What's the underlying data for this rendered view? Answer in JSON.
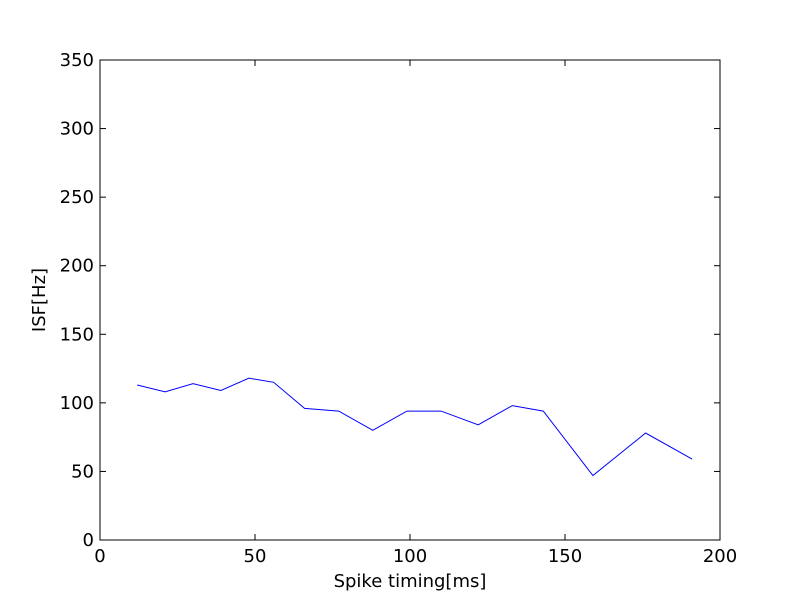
{
  "chart_data": {
    "type": "line",
    "xlabel": "Spike timing[ms]",
    "ylabel": "ISF[Hz]",
    "xlim": [
      0,
      200
    ],
    "ylim": [
      0,
      350
    ],
    "xticks": [
      0,
      50,
      100,
      150,
      200
    ],
    "yticks": [
      0,
      50,
      100,
      150,
      200,
      250,
      300,
      350
    ],
    "xtick_labels": [
      "0",
      "50",
      "100",
      "150",
      "200"
    ],
    "ytick_labels": [
      "0",
      "50",
      "100",
      "150",
      "200",
      "250",
      "300",
      "350"
    ],
    "grid": false,
    "series": [
      {
        "color": "#0000ff",
        "x": [
          12,
          21,
          30,
          39,
          48,
          56,
          66,
          77,
          88,
          99,
          110,
          122,
          133,
          143,
          159,
          176,
          191
        ],
        "y": [
          113,
          108,
          114,
          109,
          118,
          115,
          96,
          94,
          80,
          94,
          94,
          84,
          98,
          94,
          47,
          78,
          59
        ]
      }
    ]
  }
}
